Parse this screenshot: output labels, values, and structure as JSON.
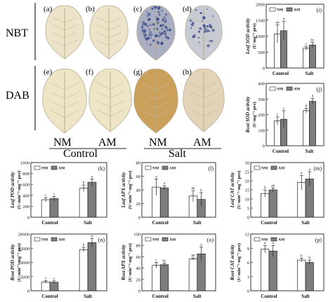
{
  "leaf_panel": {
    "row_labels": [
      "NBT",
      "DAB"
    ],
    "panel_letters": [
      "(a)",
      "(b)",
      "(c)",
      "(d)",
      "(e)",
      "(f)",
      "(g)",
      "(h)"
    ],
    "col_labels": [
      "NM",
      "AM",
      "NM",
      "AM"
    ],
    "group_labels": [
      "Control",
      "Salt"
    ],
    "colors": {
      "nbt_control": "#ece3c9",
      "nbt_salt_nm": "#a9aec2",
      "nbt_salt_am": "#c8cbd4",
      "dab_control": "#eee4c6",
      "dab_salt_nm": "#caa05a",
      "dab_salt_am": "#e3d4b9",
      "blue_spot": "#3a4a8c",
      "leaf_bg": "#ffffff"
    }
  },
  "legend": {
    "nm": "NM",
    "am": "AM"
  },
  "colors": {
    "nm_fill": "#ffffff",
    "am_fill": "#7d7d7d",
    "stroke": "#222222"
  },
  "chart_data": [
    {
      "id": "i",
      "panel_label": "(i)",
      "type": "bar",
      "ylabel_line1": "Leaf SOD activity",
      "ylabel_line2": "(U·mg⁻¹ pro)",
      "categories": [
        "Control",
        "Salt"
      ],
      "series": [
        {
          "name": "NM",
          "values": [
            1070,
            620
          ],
          "errors": [
            280,
            60
          ]
        },
        {
          "name": "AM",
          "values": [
            1170,
            720
          ],
          "errors": [
            300,
            80
          ]
        }
      ],
      "letters": [
        [
          "ab",
          "c"
        ],
        [
          "a",
          "bc"
        ]
      ],
      "ylim": [
        0,
        2000
      ],
      "yticks": [
        "0",
        "500",
        "1000",
        "1500",
        "2000"
      ],
      "legend_position": "top-left"
    },
    {
      "id": "j",
      "panel_label": "(j)",
      "type": "bar",
      "ylabel_line1": "Root SOD activity",
      "ylabel_line2": "(U·mg⁻¹ pro)",
      "categories": [
        "Control",
        "Salt"
      ],
      "series": [
        {
          "name": "NM",
          "values": [
            160,
            225
          ],
          "errors": [
            25,
            15
          ]
        },
        {
          "name": "AM",
          "values": [
            170,
            285
          ],
          "errors": [
            55,
            20
          ]
        }
      ],
      "letters": [
        [
          "c",
          "b"
        ],
        [
          "c",
          "a"
        ]
      ],
      "ylim": [
        0,
        400
      ],
      "yticks": [
        "0",
        "100",
        "200",
        "300",
        "400"
      ],
      "legend_position": "top-left"
    },
    {
      "id": "k",
      "panel_label": "(k)",
      "type": "bar",
      "ylabel_line1": "Leaf POD activity",
      "ylabel_line2": "(U·min⁻¹·mg⁻¹ pro)",
      "categories": [
        "Control",
        "Salt"
      ],
      "series": [
        {
          "name": "NM",
          "values": [
            320,
            530
          ],
          "errors": [
            40,
            60
          ]
        },
        {
          "name": "AM",
          "values": [
            340,
            640
          ],
          "errors": [
            40,
            60
          ]
        }
      ],
      "letters": [
        [
          "c",
          "b"
        ],
        [
          "c",
          "a"
        ]
      ],
      "ylim": [
        0,
        1000
      ],
      "yticks": [
        "0",
        "200",
        "400",
        "600",
        "800",
        "1000"
      ],
      "legend_position": "top-left"
    },
    {
      "id": "l",
      "panel_label": "(l)",
      "type": "bar",
      "ylabel_line1": "Leaf APX activity",
      "ylabel_line2": "(U·min⁻¹·mg⁻¹ pro)",
      "categories": [
        "Control",
        "Salt"
      ],
      "series": [
        {
          "name": "NM",
          "values": [
            44,
            31
          ],
          "errors": [
            12,
            8
          ]
        },
        {
          "name": "AM",
          "values": [
            43,
            26
          ],
          "errors": [
            3,
            10
          ]
        }
      ],
      "letters": [
        [
          "a",
          "ab"
        ],
        [
          "a",
          "b"
        ]
      ],
      "ylim": [
        0,
        80
      ],
      "yticks": [
        "0",
        "20",
        "40",
        "60",
        "80"
      ],
      "legend_position": "top-left"
    },
    {
      "id": "m",
      "panel_label": "(m)",
      "type": "bar",
      "ylabel_line1": "Leaf CAT activity",
      "ylabel_line2": "(U·min⁻¹·mg⁻¹ pro)",
      "categories": [
        "Control",
        "Salt"
      ],
      "series": [
        {
          "name": "NM",
          "values": [
            13,
            19
          ],
          "errors": [
            2,
            4
          ]
        },
        {
          "name": "AM",
          "values": [
            15,
            21
          ],
          "errors": [
            1,
            4
          ]
        }
      ],
      "letters": [
        [
          "b",
          "a"
        ],
        [
          "ab",
          "a"
        ]
      ],
      "ylim": [
        0,
        30
      ],
      "yticks": [
        "0",
        "5",
        "10",
        "15",
        "20",
        "25",
        "30"
      ],
      "legend_position": "top-left"
    },
    {
      "id": "n",
      "panel_label": "(n)",
      "type": "bar",
      "ylabel_line1": "Root POD activity",
      "ylabel_line2": "(U·min⁻¹·mg⁻¹ pro)",
      "categories": [
        "Control",
        "Salt"
      ],
      "series": [
        {
          "name": "NM",
          "values": [
            3100,
            14500
          ],
          "errors": [
            500,
            800
          ]
        },
        {
          "name": "AM",
          "values": [
            3000,
            17000
          ],
          "errors": [
            500,
            1500
          ]
        }
      ],
      "letters": [
        [
          "c",
          "b"
        ],
        [
          "c",
          "a"
        ]
      ],
      "ylim": [
        0,
        20000
      ],
      "yticks": [
        "0",
        "5000",
        "10000",
        "15000",
        "20000"
      ],
      "legend_position": "top-left"
    },
    {
      "id": "o",
      "panel_label": "(o)",
      "type": "bar",
      "ylabel_line1": "Root APX activity",
      "ylabel_line2": "(U·min⁻¹·mg⁻¹ pro)",
      "categories": [
        "Control",
        "Salt"
      ],
      "series": [
        {
          "name": "NM",
          "values": [
            45,
            56
          ],
          "errors": [
            5,
            2
          ]
        },
        {
          "name": "AM",
          "values": [
            46,
            65
          ],
          "errors": [
            3,
            12
          ]
        }
      ],
      "letters": [
        [
          "c",
          "ab"
        ],
        [
          "bc",
          "a"
        ]
      ],
      "ylim": [
        0,
        100
      ],
      "yticks": [
        "0",
        "20",
        "40",
        "60",
        "80",
        "100"
      ],
      "legend_position": "top-left"
    },
    {
      "id": "p",
      "panel_label": "(p)",
      "type": "bar",
      "ylabel_line1": "Root CAT activity",
      "ylabel_line2": "(U·min⁻¹·mg⁻¹ pro)",
      "categories": [
        "Control",
        "Salt"
      ],
      "series": [
        {
          "name": "NM",
          "values": [
            8.8,
            6.5
          ],
          "errors": [
            0.8,
            0.4
          ]
        },
        {
          "name": "AM",
          "values": [
            8.4,
            6.0
          ],
          "errors": [
            1.2,
            0.5
          ]
        }
      ],
      "letters": [
        [
          "a",
          "b"
        ],
        [
          "a",
          "b"
        ]
      ],
      "ylim": [
        0,
        12
      ],
      "yticks": [
        "0",
        "3",
        "6",
        "9",
        "12"
      ],
      "legend_position": "top-left"
    }
  ]
}
